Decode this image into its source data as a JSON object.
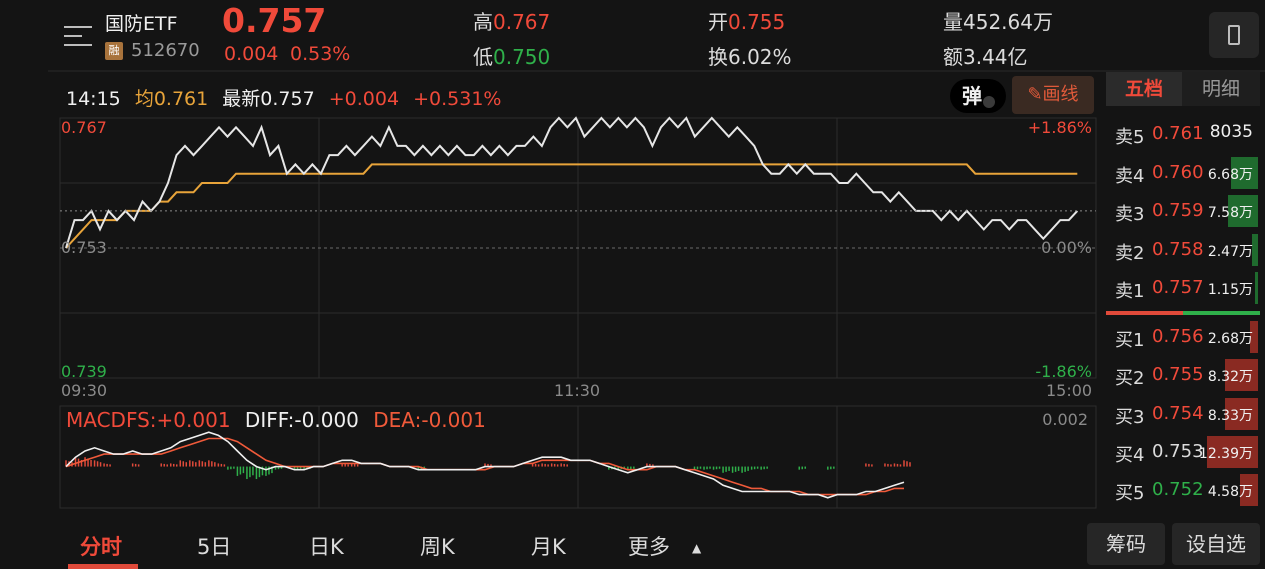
{
  "header": {
    "name": "国防ETF",
    "badge": "融",
    "code": "512670",
    "price": "0.757",
    "change_abs": "0.004",
    "change_pct": "0.53%",
    "high_label": "高",
    "high_value": "0.767",
    "low_label": "低",
    "low_value": "0.750",
    "open_label": "开",
    "open_value": "0.755",
    "turnover_label": "换",
    "turnover_value": "6.02%",
    "volume_label": "量",
    "volume_value": "452.64万",
    "amount_label": "额",
    "amount_value": "3.44亿"
  },
  "info_bar": {
    "time": "14:15",
    "avg_label": "均0.761",
    "latest_label": "最新0.757",
    "change": "+0.004",
    "change_pct": "+0.531%"
  },
  "tools": {
    "pop_label": "弹",
    "draw_label": "画线"
  },
  "order_book": {
    "tab_five": "五档",
    "tab_detail": "明细",
    "asks": [
      {
        "label": "卖5",
        "price": "0.761",
        "volume": "8035",
        "fill": 0.0
      },
      {
        "label": "卖4",
        "price": "0.760",
        "volume": "6.68万",
        "fill": 0.18
      },
      {
        "label": "卖3",
        "price": "0.759",
        "volume": "7.58万",
        "fill": 0.2
      },
      {
        "label": "卖2",
        "price": "0.758",
        "volume": "2.47万",
        "fill": 0.04
      },
      {
        "label": "卖1",
        "price": "0.757",
        "volume": "1.15万",
        "fill": 0.02
      }
    ],
    "bids": [
      {
        "label": "买1",
        "price": "0.756",
        "volume": "2.68万",
        "fill": 0.05
      },
      {
        "label": "买2",
        "price": "0.755",
        "volume": "8.32万",
        "fill": 0.22
      },
      {
        "label": "买3",
        "price": "0.754",
        "volume": "8.33万",
        "fill": 0.22
      },
      {
        "label": "买4",
        "price": "0.753",
        "volume": "12.39万",
        "fill": 0.34
      },
      {
        "label": "买5",
        "price": "0.752",
        "volume": "4.58万",
        "fill": 0.12
      }
    ],
    "colors": {
      "ask": "#2fb04a",
      "bid": "#e04a3a",
      "ask_bar": "#1f6b2e",
      "bid_bar": "#8a2a22"
    }
  },
  "chart_data": {
    "type": "line",
    "price_axis": {
      "top": "0.767",
      "mid": "0.753",
      "bottom": "0.739"
    },
    "pct_axis": {
      "top": "+1.86%",
      "mid": "0.00%",
      "bottom": "-1.86%"
    },
    "time_axis": {
      "start": "09:30",
      "mid": "11:30",
      "end": "15:00"
    },
    "ylim": [
      0.739,
      0.767
    ],
    "series": [
      {
        "values": [
          0.753,
          0.756,
          0.756,
          0.757,
          0.755,
          0.757,
          0.756,
          0.757,
          0.756,
          0.758,
          0.757,
          0.758,
          0.76,
          0.763,
          0.764,
          0.763,
          0.764,
          0.765,
          0.766,
          0.765,
          0.766,
          0.765,
          0.764,
          0.766,
          0.763,
          0.764,
          0.761,
          0.762,
          0.761,
          0.762,
          0.761,
          0.763,
          0.763,
          0.764,
          0.763,
          0.764,
          0.765,
          0.764,
          0.766,
          0.764,
          0.764,
          0.763,
          0.764,
          0.763,
          0.764,
          0.763,
          0.764,
          0.763,
          0.763,
          0.764,
          0.763,
          0.764,
          0.763,
          0.764,
          0.764,
          0.765,
          0.764,
          0.766,
          0.767,
          0.766,
          0.767,
          0.765,
          0.766,
          0.767,
          0.766,
          0.767,
          0.766,
          0.767,
          0.766,
          0.764,
          0.766,
          0.767,
          0.766,
          0.767,
          0.765,
          0.766,
          0.767,
          0.766,
          0.765,
          0.766,
          0.765,
          0.764,
          0.762,
          0.761,
          0.761,
          0.762,
          0.761,
          0.762,
          0.761,
          0.761,
          0.761,
          0.76,
          0.76,
          0.761,
          0.76,
          0.759,
          0.759,
          0.758,
          0.759,
          0.758,
          0.757,
          0.757,
          0.757,
          0.756,
          0.757,
          0.756,
          0.757,
          0.756,
          0.755,
          0.756,
          0.756,
          0.755,
          0.756,
          0.756,
          0.755,
          0.754,
          0.755,
          0.756,
          0.756,
          0.757
        ]
      },
      {
        "values": [
          0.753,
          0.754,
          0.755,
          0.756,
          0.756,
          0.756,
          0.756,
          0.757,
          0.757,
          0.757,
          0.757,
          0.758,
          0.758,
          0.759,
          0.759,
          0.759,
          0.76,
          0.76,
          0.76,
          0.76,
          0.761,
          0.761,
          0.761,
          0.761,
          0.761,
          0.761,
          0.761,
          0.761,
          0.761,
          0.761,
          0.761,
          0.761,
          0.761,
          0.761,
          0.761,
          0.761,
          0.762,
          0.762,
          0.762,
          0.762,
          0.762,
          0.762,
          0.762,
          0.762,
          0.762,
          0.762,
          0.762,
          0.762,
          0.762,
          0.762,
          0.762,
          0.762,
          0.762,
          0.762,
          0.762,
          0.762,
          0.762,
          0.762,
          0.762,
          0.762,
          0.762,
          0.762,
          0.762,
          0.762,
          0.762,
          0.762,
          0.762,
          0.762,
          0.762,
          0.762,
          0.762,
          0.762,
          0.762,
          0.762,
          0.762,
          0.762,
          0.762,
          0.762,
          0.762,
          0.762,
          0.762,
          0.762,
          0.762,
          0.762,
          0.762,
          0.762,
          0.762,
          0.762,
          0.762,
          0.762,
          0.762,
          0.762,
          0.762,
          0.762,
          0.762,
          0.762,
          0.762,
          0.762,
          0.762,
          0.762,
          0.762,
          0.762,
          0.762,
          0.762,
          0.762,
          0.762,
          0.762,
          0.761,
          0.761,
          0.761,
          0.761,
          0.761,
          0.761,
          0.761,
          0.761,
          0.761,
          0.761,
          0.761,
          0.761,
          0.761
        ]
      }
    ],
    "colors": {
      "price": "#e6e6e6",
      "avg": "#e8a43a",
      "grid": "#2c2c2c",
      "zero": "#6a6a6a"
    }
  },
  "macd": {
    "label": "MACDFS:+0.001",
    "diff": "DIFF:-0.000",
    "dea": "DEA:-0.001",
    "axis_top": "0.002",
    "ylim": [
      -0.0012,
      0.0013
    ],
    "diff_values": [
      0.0,
      0.0003,
      0.0005,
      0.0006,
      0.0005,
      0.0004,
      0.0004,
      0.0005,
      0.0004,
      0.0004,
      0.0005,
      0.0006,
      0.0008,
      0.0009,
      0.001,
      0.0011,
      0.001,
      0.0008,
      0.0005,
      0.0002,
      0.0,
      -0.0001,
      0.0,
      0.0,
      -0.0001,
      -0.0001,
      0.0,
      0.0,
      0.0001,
      0.0002,
      0.0002,
      0.0001,
      0.0001,
      0.0001,
      0.0,
      0.0,
      0.0,
      -0.0001,
      -0.0001,
      -0.0001,
      -0.0001,
      -0.0001,
      -0.0001,
      -0.0001,
      0.0,
      0.0,
      0.0,
      0.0,
      0.0001,
      0.0002,
      0.0003,
      0.0003,
      0.0003,
      0.0002,
      0.0002,
      0.0002,
      0.0001,
      0.0,
      -0.0001,
      -0.0002,
      -0.0001,
      0.0,
      0.0,
      0.0,
      0.0,
      -0.0001,
      -0.0002,
      -0.0003,
      -0.0004,
      -0.0006,
      -0.0007,
      -0.0008,
      -0.0008,
      -0.0008,
      -0.0008,
      -0.0008,
      -0.0008,
      -0.0009,
      -0.0009,
      -0.0009,
      -0.001,
      -0.0009,
      -0.0009,
      -0.0009,
      -0.0008,
      -0.0008,
      -0.0007,
      -0.0006,
      -0.0005
    ],
    "dea_values": [
      0.0,
      0.0001,
      0.0002,
      0.0003,
      0.0004,
      0.0004,
      0.0004,
      0.0004,
      0.0004,
      0.0004,
      0.0004,
      0.0005,
      0.0006,
      0.0007,
      0.0008,
      0.0009,
      0.0009,
      0.0009,
      0.0008,
      0.0006,
      0.0004,
      0.0002,
      0.0001,
      0.0,
      0.0,
      0.0,
      0.0,
      0.0,
      0.0001,
      0.0001,
      0.0001,
      0.0001,
      0.0001,
      0.0001,
      0.0,
      0.0,
      0.0,
      0.0,
      -0.0001,
      -0.0001,
      -0.0001,
      -0.0001,
      -0.0001,
      -0.0001,
      -0.0001,
      0.0,
      0.0,
      0.0,
      0.0001,
      0.0001,
      0.0002,
      0.0002,
      0.0002,
      0.0002,
      0.0002,
      0.0002,
      0.0001,
      0.0001,
      0.0,
      -0.0001,
      -0.0001,
      -0.0001,
      0.0,
      0.0,
      0.0,
      -0.0001,
      -0.0001,
      -0.0002,
      -0.0003,
      -0.0004,
      -0.0005,
      -0.0006,
      -0.0007,
      -0.0007,
      -0.0008,
      -0.0008,
      -0.0008,
      -0.0008,
      -0.0009,
      -0.0009,
      -0.0009,
      -0.0009,
      -0.0009,
      -0.0009,
      -0.0009,
      -0.0008,
      -0.0008,
      -0.0007,
      -0.0007
    ],
    "hist_values": [
      0.0002,
      0.0003,
      0.0003,
      0.0002,
      0.0001,
      0.0,
      0.0,
      0.0001,
      0.0,
      0.0,
      0.0001,
      0.0001,
      0.0002,
      0.0002,
      0.0002,
      0.0002,
      0.0001,
      -0.0001,
      -0.0003,
      -0.0004,
      -0.0004,
      -0.0003,
      -0.0001,
      0.0,
      -0.0001,
      -0.0001,
      0.0,
      0.0,
      0.0,
      0.0001,
      0.0001,
      0.0,
      0.0,
      0.0,
      0.0,
      0.0,
      0.0,
      -0.0001,
      0.0,
      0.0,
      0.0,
      0.0,
      0.0,
      0.0,
      0.0001,
      0.0,
      0.0,
      0.0,
      0.0,
      0.0001,
      0.0001,
      0.0001,
      0.0001,
      0.0,
      0.0,
      0.0,
      0.0,
      -0.0001,
      -0.0001,
      -0.0001,
      0.0,
      0.0001,
      0.0,
      0.0,
      0.0,
      0.0,
      -0.0001,
      -0.0001,
      -0.0001,
      -0.0002,
      -0.0002,
      -0.0002,
      -0.0001,
      -0.0001,
      0.0,
      0.0,
      0.0,
      -0.0001,
      0.0,
      0.0,
      -0.0001,
      0.0,
      0.0,
      0.0,
      0.0001,
      0.0,
      0.0001,
      0.0001,
      0.0002
    ],
    "colors": {
      "diff": "#f0f0f0",
      "dea": "#f05a3a",
      "up": "#e04a3a",
      "down": "#2fb04a"
    }
  },
  "bottom_tabs": {
    "tabs": [
      "分时",
      "5日",
      "日K",
      "周K",
      "月K",
      "更多"
    ],
    "chips_button": "筹码",
    "watchlist_button": "设自选"
  }
}
